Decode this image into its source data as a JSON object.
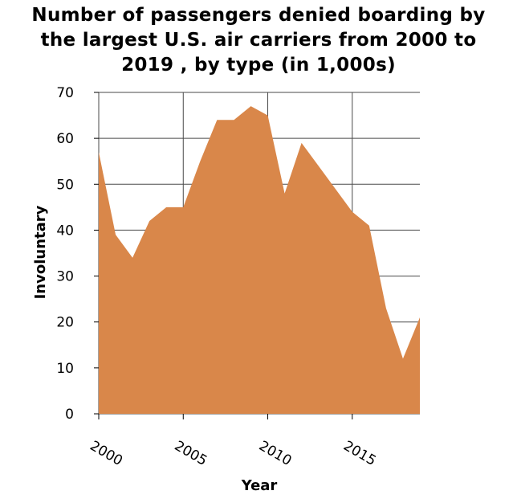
{
  "chart_data": {
    "type": "area",
    "title_lines": [
      "Number of passengers denied boarding by",
      "the largest U.S. air carriers from 2000 to",
      "2019 , by type (in 1,000s)"
    ],
    "xlabel": "Year",
    "ylabel": "Involuntary",
    "xlim": [
      2000,
      2019
    ],
    "ylim": [
      0,
      70
    ],
    "x_ticks": [
      2000,
      2005,
      2010,
      2015
    ],
    "y_ticks": [
      0,
      10,
      20,
      30,
      40,
      50,
      60,
      70
    ],
    "grid": true,
    "color": "#d9874a",
    "series": [
      {
        "x": [
          2000,
          2001,
          2002,
          2003,
          2004,
          2005,
          2006,
          2007,
          2008,
          2009,
          2010,
          2011,
          2012,
          2013,
          2014,
          2015,
          2016,
          2017,
          2018,
          2019
        ],
        "values": [
          57,
          39,
          34,
          42,
          45,
          45,
          55,
          64,
          64,
          67,
          65,
          48,
          59,
          54,
          49,
          44,
          41,
          23,
          12,
          21
        ]
      }
    ]
  }
}
